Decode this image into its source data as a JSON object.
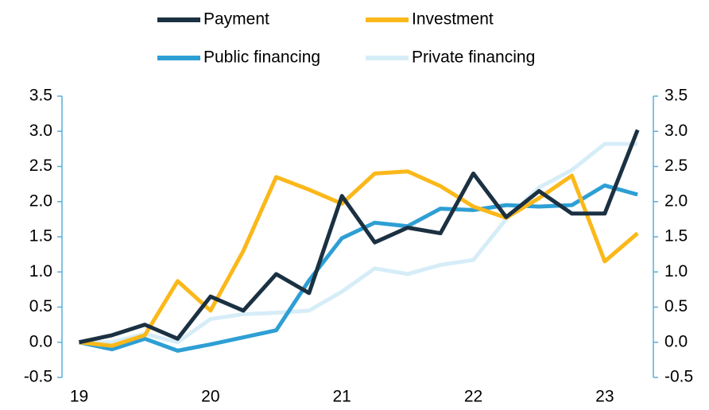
{
  "chart_data": {
    "type": "line",
    "x": [
      19,
      19.25,
      19.5,
      19.75,
      20,
      20.25,
      20.5,
      20.75,
      21,
      21.25,
      21.5,
      21.75,
      22,
      22.25,
      22.5,
      22.75,
      23,
      23.25
    ],
    "xlim": [
      18.87,
      23.37
    ],
    "xticks": [
      19,
      20,
      21,
      22,
      23
    ],
    "ylim": [
      -0.5,
      3.5
    ],
    "yticks": [
      -0.5,
      {
        "value": 0,
        "label": "0.0"
      },
      0.5,
      {
        "value": 1,
        "label": "1.0"
      },
      1.5,
      {
        "value": 2,
        "label": "2.0"
      },
      2.5,
      {
        "value": 3,
        "label": "3.0"
      },
      3.5
    ],
    "y2lim": [
      -0.5,
      3.5
    ],
    "y2ticks": [
      -0.5,
      {
        "value": 0,
        "label": "0.0"
      },
      0.5,
      {
        "value": 1,
        "label": "1.0"
      },
      1.5,
      {
        "value": 2,
        "label": "2.0"
      },
      2.5,
      {
        "value": 3,
        "label": "3.0"
      },
      3.5
    ],
    "legend": "top",
    "series": [
      {
        "name": "Payment",
        "color": "#1b3142",
        "values": [
          0,
          0.1,
          0.25,
          0.05,
          0.65,
          0.45,
          0.97,
          0.7,
          2.08,
          1.42,
          1.63,
          1.55,
          2.4,
          1.78,
          2.15,
          1.83,
          1.83,
          3.02
        ]
      },
      {
        "name": "Investment",
        "color": "#fbb81a",
        "values": [
          0,
          -0.05,
          0.1,
          0.87,
          0.45,
          1.3,
          2.35,
          2.17,
          1.97,
          2.4,
          2.43,
          2.22,
          1.93,
          1.77,
          2.05,
          2.37,
          1.15,
          1.55
        ]
      },
      {
        "name": "Public financing",
        "color": "#2e9fd4",
        "values": [
          0,
          -0.1,
          0.05,
          -0.12,
          -0.03,
          0.07,
          0.17,
          0.88,
          1.48,
          1.7,
          1.65,
          1.9,
          1.88,
          1.95,
          1.93,
          1.95,
          2.23,
          2.1
        ]
      },
      {
        "name": "Private financing",
        "color": "#d6edf8",
        "values": [
          0,
          0,
          0.12,
          0,
          0.33,
          0.4,
          0.42,
          0.45,
          0.72,
          1.05,
          0.97,
          1.1,
          1.17,
          1.75,
          2.2,
          2.45,
          2.82,
          2.82
        ]
      }
    ]
  }
}
